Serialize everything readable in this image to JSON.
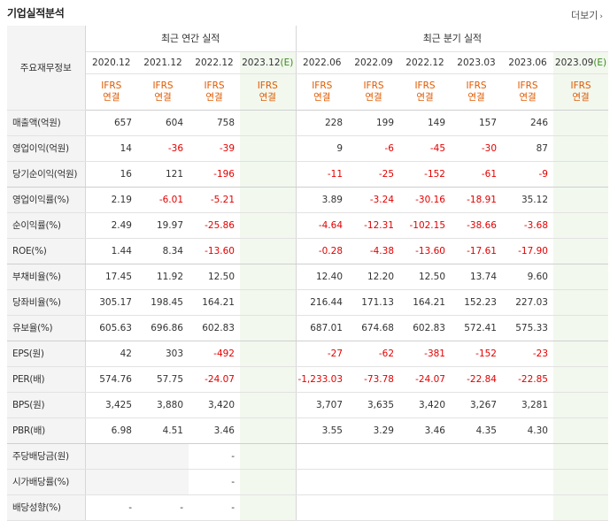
{
  "header": {
    "title": "기업실적분석",
    "more": "더보기",
    "more_icon": "chevron-right"
  },
  "table": {
    "row_header_label": "주요재무정보",
    "annual_group": "최근 연간 실적",
    "quarter_group": "최근 분기 실적",
    "annual_periods": [
      {
        "label": "2020.12",
        "est": false
      },
      {
        "label": "2021.12",
        "est": false
      },
      {
        "label": "2022.12",
        "est": false
      },
      {
        "label": "2023.12",
        "est_mark": "(E)",
        "est": true
      }
    ],
    "quarter_periods": [
      {
        "label": "2022.06",
        "est": false
      },
      {
        "label": "2022.09",
        "est": false
      },
      {
        "label": "2022.12",
        "est": false
      },
      {
        "label": "2023.03",
        "est": false
      },
      {
        "label": "2023.06",
        "est": false
      },
      {
        "label": "2023.09",
        "est_mark": "(E)",
        "est": true
      }
    ],
    "ifrs_line1": "IFRS",
    "ifrs_line2": "연결",
    "rows": [
      {
        "label": "매출액(억원)",
        "values": [
          "657",
          "604",
          "758",
          "",
          "228",
          "199",
          "149",
          "157",
          "246",
          ""
        ]
      },
      {
        "label": "영업이익(억원)",
        "values": [
          "14",
          "-36",
          "-39",
          "",
          "9",
          "-6",
          "-45",
          "-30",
          "87",
          ""
        ]
      },
      {
        "label": "당기순이익(억원)",
        "values": [
          "16",
          "121",
          "-196",
          "",
          "-11",
          "-25",
          "-152",
          "-61",
          "-9",
          ""
        ],
        "group_end": true
      },
      {
        "label": "영업이익률(%)",
        "values": [
          "2.19",
          "-6.01",
          "-5.21",
          "",
          "3.89",
          "-3.24",
          "-30.16",
          "-18.91",
          "35.12",
          ""
        ]
      },
      {
        "label": "순이익률(%)",
        "values": [
          "2.49",
          "19.97",
          "-25.86",
          "",
          "-4.64",
          "-12.31",
          "-102.15",
          "-38.66",
          "-3.68",
          ""
        ]
      },
      {
        "label": "ROE(%)",
        "values": [
          "1.44",
          "8.34",
          "-13.60",
          "",
          "-0.28",
          "-4.38",
          "-13.60",
          "-17.61",
          "-17.90",
          ""
        ],
        "group_end": true
      },
      {
        "label": "부채비율(%)",
        "values": [
          "17.45",
          "11.92",
          "12.50",
          "",
          "12.40",
          "12.20",
          "12.50",
          "13.74",
          "9.60",
          ""
        ]
      },
      {
        "label": "당좌비율(%)",
        "values": [
          "305.17",
          "198.45",
          "164.21",
          "",
          "216.44",
          "171.13",
          "164.21",
          "152.23",
          "227.03",
          ""
        ]
      },
      {
        "label": "유보율(%)",
        "values": [
          "605.63",
          "696.86",
          "602.83",
          "",
          "687.01",
          "674.68",
          "602.83",
          "572.41",
          "575.33",
          ""
        ],
        "group_end": true
      },
      {
        "label": "EPS(원)",
        "values": [
          "42",
          "303",
          "-492",
          "",
          "-27",
          "-62",
          "-381",
          "-152",
          "-23",
          ""
        ]
      },
      {
        "label": "PER(배)",
        "values": [
          "574.76",
          "57.75",
          "-24.07",
          "",
          "-1,233.03",
          "-73.78",
          "-24.07",
          "-22.84",
          "-22.85",
          ""
        ]
      },
      {
        "label": "BPS(원)",
        "values": [
          "3,425",
          "3,880",
          "3,420",
          "",
          "3,707",
          "3,635",
          "3,420",
          "3,267",
          "3,281",
          ""
        ]
      },
      {
        "label": "PBR(배)",
        "values": [
          "6.98",
          "4.51",
          "3.46",
          "",
          "3.55",
          "3.29",
          "3.46",
          "4.35",
          "4.30",
          ""
        ],
        "group_end": true
      },
      {
        "label": "주당배당금(원)",
        "values": [
          "",
          "",
          "-",
          "",
          "",
          "",
          "",
          "",
          "",
          ""
        ],
        "blank_cols": [
          0,
          1
        ]
      },
      {
        "label": "시가배당률(%)",
        "values": [
          "",
          "",
          "-",
          "",
          "",
          "",
          "",
          "",
          "",
          ""
        ],
        "blank_cols": [
          0,
          1
        ]
      },
      {
        "label": "배당성향(%)",
        "values": [
          "-",
          "-",
          "-",
          "",
          "",
          "",
          "",
          "",
          "",
          ""
        ]
      }
    ]
  },
  "colors": {
    "negative": "#e30000",
    "ifrs": "#e05a00",
    "estimate_bg": "#f2f8ee",
    "estimate_mark": "#3a8a1e"
  }
}
